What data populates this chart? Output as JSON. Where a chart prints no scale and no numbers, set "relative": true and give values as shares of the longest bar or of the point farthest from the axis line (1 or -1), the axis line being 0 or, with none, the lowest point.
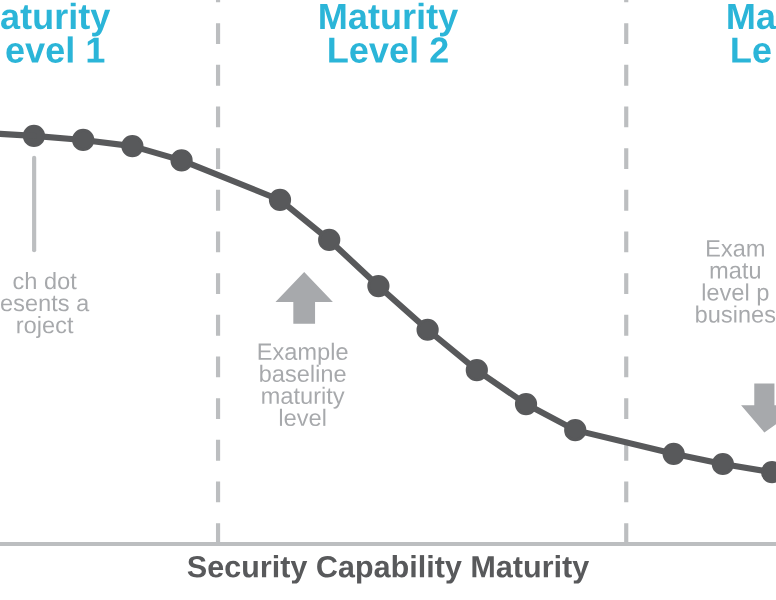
{
  "chart_data": {
    "type": "line",
    "relative": true,
    "xlabel": "Security Capability Maturity",
    "categories": [
      null,
      null,
      null,
      null,
      null,
      null,
      null,
      null,
      null,
      null,
      null,
      null,
      null,
      null,
      null,
      null
    ],
    "series": [
      {
        "color": "#58595b",
        "values": [
          1,
          0.99,
          0.975,
          0.94,
          null,
          0.843,
          0.745,
          0.632,
          0.525,
          0.426,
          0.343,
          0.279,
          null,
          0.221,
          0.196,
          0.176
        ]
      }
    ],
    "marker": "circle",
    "line_style": "solid",
    "grid": false,
    "legend": false,
    "tick_labels": false,
    "annotations": [
      "aturity\nevel 1",
      "Maturity\nLevel 2",
      "Ma\nLe",
      "ch dot\nesents a\nroject",
      "Example\nbaseline\nmaturity\nlevel",
      "Exam\nmatu\nlevel p\nbusines"
    ]
  }
}
